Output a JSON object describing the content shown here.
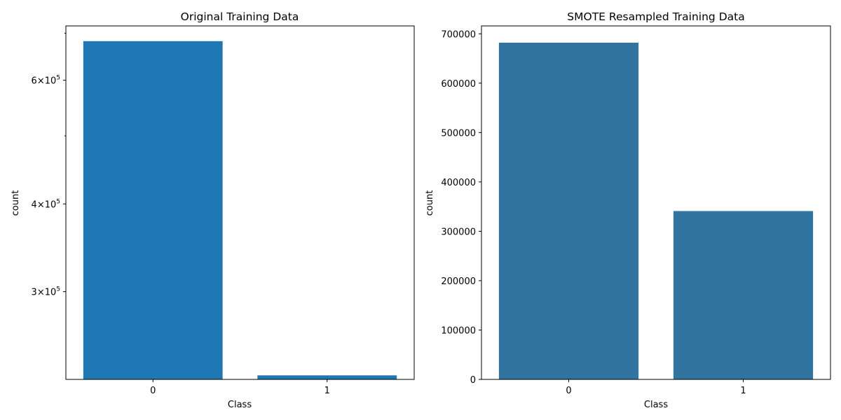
{
  "chart_data": [
    {
      "type": "bar",
      "title": "Original Training Data",
      "xlabel": "Class",
      "ylabel": "count",
      "categories": [
        "0",
        "1"
      ],
      "values": [
        682000,
        228000
      ],
      "yscale": "log",
      "ylim": [
        225000,
        717000
      ],
      "yticks": [
        {
          "value": 600000,
          "mantissa": "6",
          "exp": "5"
        },
        {
          "value": 400000,
          "mantissa": "4",
          "exp": "5"
        },
        {
          "value": 300000,
          "mantissa": "3",
          "exp": "5"
        }
      ],
      "minor_yticks": [
        500000,
        700000
      ],
      "bar_color": "#1f77b4",
      "grid": false,
      "legend": "none"
    },
    {
      "type": "bar",
      "title": "SMOTE Resampled Training Data",
      "xlabel": "Class",
      "ylabel": "count",
      "categories": [
        "0",
        "1"
      ],
      "values": [
        682000,
        341000
      ],
      "yscale": "linear",
      "ylim": [
        0,
        716000
      ],
      "yticks": [
        {
          "value": 0,
          "label": "0"
        },
        {
          "value": 100000,
          "label": "100000"
        },
        {
          "value": 200000,
          "label": "200000"
        },
        {
          "value": 300000,
          "label": "300000"
        },
        {
          "value": 400000,
          "label": "400000"
        },
        {
          "value": 500000,
          "label": "500000"
        },
        {
          "value": 600000,
          "label": "600000"
        },
        {
          "value": 700000,
          "label": "700000"
        }
      ],
      "bar_color": "#3274a1",
      "grid": false,
      "legend": "none"
    }
  ]
}
